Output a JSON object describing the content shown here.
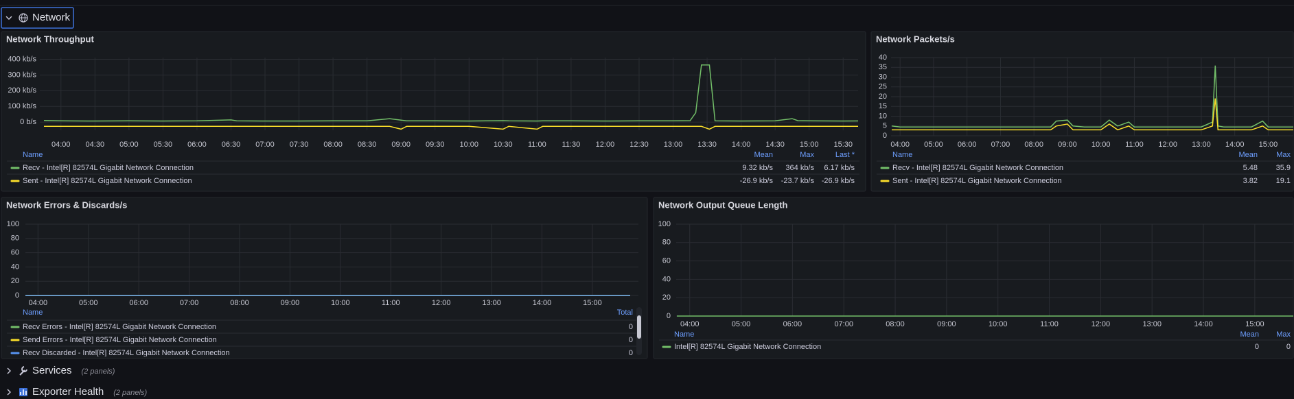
{
  "rows": [
    {
      "title": "Network"
    },
    {
      "title": "Services",
      "note": "(2 panels)"
    },
    {
      "title": "Exporter Health",
      "note": "(2 panels)"
    }
  ],
  "panels": [
    {
      "title": "Network Throughput",
      "chart": {
        "type": "line",
        "x": [
          "03:45",
          "04:00",
          "04:30",
          "05:00",
          "05:30",
          "06:00",
          "06:30",
          "06:35",
          "07:00",
          "07:30",
          "08:00",
          "08:30",
          "08:50",
          "09:00",
          "09:05",
          "09:30",
          "10:00",
          "10:30",
          "10:35",
          "11:00",
          "11:05",
          "11:30",
          "12:00",
          "12:30",
          "13:00",
          "13:15",
          "13:20",
          "13:25",
          "13:32",
          "13:37",
          "14:00",
          "14:30",
          "14:45",
          "14:50",
          "15:00",
          "15:30",
          "15:45"
        ],
        "xlim": [
          "03:45",
          "15:45"
        ],
        "xticks": [
          "04:00",
          "04:30",
          "05:00",
          "05:30",
          "06:00",
          "06:30",
          "07:00",
          "07:30",
          "08:00",
          "08:30",
          "09:00",
          "09:30",
          "10:00",
          "10:30",
          "11:00",
          "11:30",
          "12:00",
          "12:30",
          "13:00",
          "13:30",
          "14:00",
          "14:30",
          "15:00",
          "15:30"
        ],
        "ylim": [
          -52,
          411
        ],
        "yticks": [
          {
            "value": 0,
            "label": "0 b/s"
          },
          {
            "value": 100,
            "label": "100 kb/s"
          },
          {
            "value": 200,
            "label": "200 kb/s"
          },
          {
            "value": 300,
            "label": "300 kb/s"
          },
          {
            "value": 400,
            "label": "400 kb/s"
          }
        ],
        "grid": true,
        "series": [
          {
            "name": "Recv - Intel[R] 82574L Gigabit Network Connection",
            "color": "#73bf69",
            "values": [
              10,
              8,
              7,
              8,
              7,
              8,
              14,
              8,
              7,
              7,
              8,
              8,
              22,
              12,
              8,
              8,
              7,
              9,
              8,
              7,
              8,
              8,
              7,
              8,
              8,
              9,
              60,
              364,
              364,
              8,
              7,
              8,
              22,
              9,
              8,
              7,
              8
            ]
          },
          {
            "name": "Sent - Intel[R] 82574L Gigabit Network Connection",
            "color": "#fade2a",
            "values": [
              -27,
              -27,
              -27,
              -27,
              -27,
              -27,
              -27,
              -27,
              -27,
              -27,
              -27,
              -27,
              -27,
              -45,
              -27,
              -27,
              -27,
              -45,
              -27,
              -45,
              -27,
              -27,
              -27,
              -27,
              -27,
              -27,
              -27,
              -27,
              -45,
              -27,
              -27,
              -27,
              -27,
              -27,
              -27,
              -27,
              -27
            ]
          }
        ]
      },
      "legend": {
        "columns": [
          "Name",
          "Mean",
          "Max",
          "Last *"
        ],
        "rows": [
          [
            "9.32 kb/s",
            "364 kb/s",
            "6.17 kb/s"
          ],
          [
            "-26.9 kb/s",
            "-23.7 kb/s",
            "-26.9 kb/s"
          ]
        ]
      }
    },
    {
      "title": "Network Packets/s",
      "chart": {
        "type": "line",
        "x": [
          "03:45",
          "04:00",
          "04:30",
          "05:00",
          "05:30",
          "06:00",
          "06:30",
          "07:00",
          "07:30",
          "08:00",
          "08:30",
          "08:40",
          "09:00",
          "09:10",
          "09:30",
          "10:00",
          "10:15",
          "10:30",
          "10:50",
          "11:00",
          "11:30",
          "12:00",
          "12:30",
          "13:00",
          "13:20",
          "13:25",
          "13:30",
          "13:40",
          "14:00",
          "14:30",
          "14:50",
          "15:00",
          "15:30",
          "15:45"
        ],
        "xlim": [
          "03:45",
          "15:45"
        ],
        "xticks": [
          "04:00",
          "05:00",
          "06:00",
          "07:00",
          "08:00",
          "09:00",
          "10:00",
          "11:00",
          "12:00",
          "13:00",
          "14:00",
          "15:00"
        ],
        "ylim": [
          0,
          40
        ],
        "yticks": [
          0,
          5,
          10,
          15,
          20,
          25,
          30,
          35,
          40
        ],
        "grid": true,
        "series": [
          {
            "name": "Recv - Intel[R] 82574L Gigabit Network Connection",
            "color": "#73bf69",
            "values": [
              5,
              4.5,
              4.5,
              4.5,
              4.5,
              4.5,
              4.5,
              4.5,
              4.5,
              4.5,
              4.5,
              7.5,
              8,
              5,
              4.5,
              4.5,
              8,
              5,
              7,
              4.5,
              4.5,
              4.5,
              4.5,
              4.5,
              7,
              35.9,
              5,
              4.5,
              4.5,
              4.5,
              7.5,
              4.5,
              4.5,
              4.5
            ]
          },
          {
            "name": "Sent - Intel[R] 82574L Gigabit Network Connection",
            "color": "#fade2a",
            "values": [
              3,
              3,
              3,
              3,
              3,
              3,
              3,
              3,
              3,
              3,
              3,
              5,
              6,
              3,
              3,
              3,
              6,
              3,
              5,
              3,
              3,
              3,
              3,
              3,
              5,
              19.1,
              3,
              3,
              3,
              3,
              5,
              3,
              3,
              3
            ]
          }
        ]
      },
      "legend": {
        "columns": [
          "Name",
          "Mean",
          "Max"
        ],
        "rows": [
          [
            "5.48",
            "35.9"
          ],
          [
            "3.82",
            "19.1"
          ]
        ]
      }
    },
    {
      "title": "Network Errors & Discards/s",
      "chart": {
        "type": "line",
        "x": [
          "03:45",
          "15:45"
        ],
        "xlim": [
          "03:45",
          "15:45"
        ],
        "xticks": [
          "04:00",
          "05:00",
          "06:00",
          "07:00",
          "08:00",
          "09:00",
          "10:00",
          "11:00",
          "12:00",
          "13:00",
          "14:00",
          "15:00"
        ],
        "ylim": [
          0,
          100
        ],
        "yticks": [
          0,
          20,
          40,
          60,
          80,
          100
        ],
        "grid": true,
        "series": [
          {
            "name": "Recv Errors - Intel[R] 82574L Gigabit Network Connection",
            "color": "#73bf69",
            "values": [
              0,
              0
            ]
          },
          {
            "name": "Send Errors - Intel[R] 82574L Gigabit Network Connection",
            "color": "#fade2a",
            "values": [
              0,
              0
            ]
          },
          {
            "name": "Recv Discarded - Intel[R] 82574L Gigabit Network Connection",
            "color": "#5794f2",
            "values": [
              0,
              0
            ]
          }
        ]
      },
      "legend": {
        "columns": [
          "Name",
          "Total"
        ],
        "rows": [
          [
            "0"
          ],
          [
            "0"
          ],
          [
            "0"
          ]
        ]
      }
    },
    {
      "title": "Network Output Queue Length",
      "chart": {
        "type": "line",
        "x": [
          "03:45",
          "15:45"
        ],
        "xlim": [
          "03:45",
          "15:45"
        ],
        "xticks": [
          "04:00",
          "05:00",
          "06:00",
          "07:00",
          "08:00",
          "09:00",
          "10:00",
          "11:00",
          "12:00",
          "13:00",
          "14:00",
          "15:00"
        ],
        "ylim": [
          0,
          100
        ],
        "yticks": [
          0,
          20,
          40,
          60,
          80,
          100
        ],
        "grid": true,
        "series": [
          {
            "name": "Intel[R] 82574L Gigabit Network Connection",
            "color": "#73bf69",
            "values": [
              0,
              0
            ]
          }
        ]
      },
      "legend": {
        "columns": [
          "Name",
          "Mean",
          "Max"
        ],
        "rows": [
          [
            "0",
            "0"
          ]
        ]
      }
    }
  ]
}
